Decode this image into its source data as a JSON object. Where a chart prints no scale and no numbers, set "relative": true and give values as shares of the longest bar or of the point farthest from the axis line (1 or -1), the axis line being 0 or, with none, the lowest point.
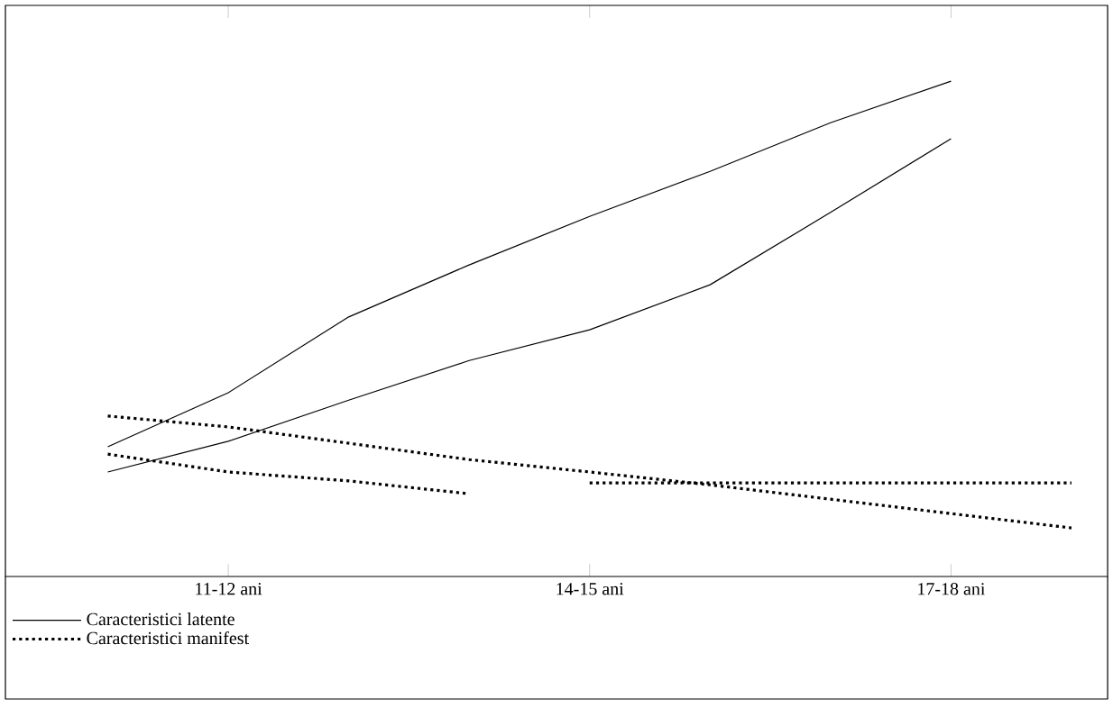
{
  "chart_data": {
    "type": "line",
    "relative": true,
    "categories": [
      null,
      "11-12 ani",
      null,
      null,
      "14-15 ani",
      null,
      null,
      "17-18 ani",
      null
    ],
    "legend": "bottom left",
    "series": [
      {
        "name": "Caracteristici latente",
        "color": "#000000",
        "line_style": "solid",
        "values": [
          0.262,
          0.371,
          0.524,
          0.629,
          0.727,
          0.818,
          0.916,
          1,
          null
        ]
      },
      {
        "color": "#000000",
        "line_style": "solid",
        "values": [
          0.211,
          0.273,
          0.356,
          0.436,
          0.498,
          0.589,
          0.735,
          0.884,
          null
        ]
      },
      {
        "name": "Caracteristici manifest",
        "color": "#000000",
        "line_style": "dotted",
        "values": [
          0.324,
          0.302,
          0.269,
          0.236,
          0.211,
          0.185,
          0.156,
          0.127,
          0.098
        ]
      },
      {
        "color": "#000000",
        "line_style": "dotted",
        "values": [
          0.247,
          0.211,
          0.193,
          0.167,
          null,
          null,
          null,
          null,
          null
        ]
      },
      {
        "color": "#000000",
        "line_style": "dotted",
        "values": [
          null,
          null,
          null,
          null,
          0.189,
          0.189,
          0.189,
          0.189,
          0.189
        ]
      }
    ]
  }
}
